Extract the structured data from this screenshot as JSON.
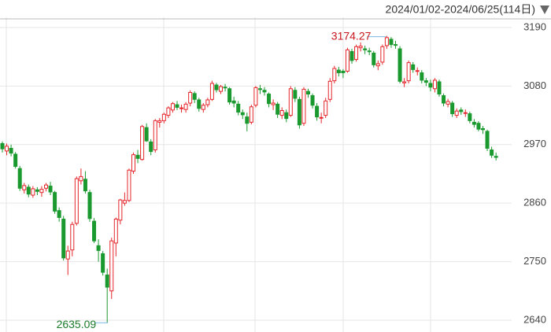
{
  "chart_data": {
    "type": "candlestick",
    "date_range": "2024/01/02-2024/06/25(114日)",
    "up_color": "#e5262b",
    "down_color": "#1a9a2e",
    "ylim": [
      2617.8,
      3209.2
    ],
    "yticks": [
      2640,
      2750,
      2860,
      2970,
      3080,
      3190
    ],
    "grid": true,
    "open": [
      2972,
      2958,
      2963,
      2952,
      2925,
      2885,
      2890,
      2875,
      2885,
      2880,
      2888,
      2892,
      2880,
      2846,
      2830,
      2755,
      2772,
      2822,
      2902,
      2905,
      2880,
      2826,
      2780,
      2765,
      2725,
      2695,
      2785,
      2828,
      2860,
      2865,
      2920,
      2950,
      2942,
      3002,
      2975,
      2960,
      3012,
      3015,
      3025,
      3035,
      3045,
      3038,
      3036,
      3048,
      3066,
      3054,
      3036,
      3045,
      3055,
      3082,
      3070,
      3078,
      3075,
      3052,
      3046,
      3030,
      3022,
      3012,
      3044,
      3075,
      3072,
      3065,
      3045,
      3046,
      3025,
      3030,
      3025,
      3072,
      3055,
      3010,
      3070,
      3062,
      3042,
      3020,
      3025,
      3055,
      3090,
      3110,
      3108,
      3108,
      3145,
      3130,
      3152,
      3150,
      3146,
      3142,
      3118,
      3125,
      3156,
      3168,
      3158,
      3150,
      3086,
      3090,
      3120,
      3108,
      3105,
      3090,
      3085,
      3075,
      3088,
      3062,
      3046,
      3048,
      3025,
      3035,
      3030,
      3028,
      3012,
      3010,
      3000,
      2995,
      2960,
      2948
    ],
    "high": [
      2976,
      2972,
      2970,
      2956,
      2930,
      2898,
      2895,
      2892,
      2890,
      2892,
      2898,
      2900,
      2883,
      2852,
      2836,
      2780,
      2825,
      2910,
      2925,
      2920,
      2885,
      2832,
      2792,
      2770,
      2737,
      2795,
      2833,
      2868,
      2880,
      2925,
      2955,
      2960,
      3007,
      3010,
      2980,
      3018,
      3020,
      3030,
      3042,
      3050,
      3052,
      3045,
      3050,
      3072,
      3070,
      3058,
      3048,
      3058,
      3090,
      3086,
      3082,
      3084,
      3078,
      3060,
      3052,
      3036,
      3030,
      3045,
      3080,
      3082,
      3078,
      3068,
      3055,
      3050,
      3040,
      3036,
      3080,
      3078,
      3060,
      3078,
      3075,
      3066,
      3048,
      3030,
      3058,
      3095,
      3118,
      3116,
      3112,
      3152,
      3150,
      3158,
      3162,
      3156,
      3152,
      3146,
      3128,
      3158,
      3174.27,
      3172,
      3165,
      3155,
      3095,
      3128,
      3125,
      3115,
      3110,
      3095,
      3092,
      3095,
      3092,
      3066,
      3056,
      3052,
      3038,
      3040,
      3036,
      3032,
      3018,
      3014,
      3005,
      2998,
      2966,
      2955
    ],
    "low": [
      2955,
      2950,
      2948,
      2925,
      2883,
      2878,
      2871,
      2870,
      2875,
      2872,
      2882,
      2875,
      2840,
      2825,
      2752,
      2725,
      2760,
      2818,
      2895,
      2878,
      2825,
      2785,
      2750,
      2724,
      2635.09,
      2680,
      2760,
      2820,
      2855,
      2862,
      2915,
      2935,
      2940,
      2975,
      2950,
      2955,
      3002,
      3010,
      3020,
      3030,
      3035,
      3030,
      3030,
      3042,
      3048,
      3032,
      3030,
      3040,
      3052,
      3068,
      3065,
      3070,
      3045,
      3040,
      3025,
      3018,
      2995,
      3008,
      3040,
      3065,
      3062,
      3040,
      3035,
      3020,
      3018,
      3012,
      3022,
      3050,
      3000,
      3005,
      3058,
      3038,
      3015,
      3010,
      3020,
      3050,
      3085,
      3098,
      3095,
      3105,
      3122,
      3126,
      3145,
      3140,
      3138,
      3115,
      3110,
      3120,
      3150,
      3152,
      3150,
      3085,
      3078,
      3085,
      3105,
      3100,
      3085,
      3080,
      3070,
      3068,
      3060,
      3042,
      3040,
      3022,
      3020,
      3026,
      3022,
      3010,
      3002,
      2995,
      2990,
      2958,
      2945,
      2940
    ],
    "close": [
      2962,
      2967,
      2954,
      2929,
      2888,
      2893,
      2877,
      2887,
      2882,
      2886,
      2894,
      2881,
      2845,
      2833,
      2757,
      2770,
      2820,
      2906,
      2910,
      2883,
      2831,
      2789,
      2771,
      2730,
      2702,
      2789,
      2830,
      2866,
      2865,
      2922,
      2951,
      2944,
      3004,
      2977,
      2957,
      3015,
      3015,
      3027,
      3039,
      3047,
      3040,
      3039,
      3046,
      3068,
      3055,
      3038,
      3044,
      3054,
      3085,
      3073,
      3079,
      3077,
      3050,
      3048,
      3031,
      3026,
      3010,
      3041,
      3077,
      3074,
      3069,
      3047,
      3048,
      3027,
      3034,
      3019,
      3075,
      3057,
      3007,
      3074,
      3065,
      3044,
      3022,
      3021,
      3052,
      3089,
      3113,
      3105,
      3105,
      3148,
      3128,
      3154,
      3155,
      3148,
      3145,
      3120,
      3122,
      3154,
      3171,
      3158,
      3157,
      3089,
      3088,
      3124,
      3111,
      3109,
      3091,
      3087,
      3078,
      3091,
      3065,
      3048,
      3051,
      3028,
      3033,
      3032,
      3030,
      3015,
      3008,
      2999,
      2998,
      2963,
      2950,
      2946
    ]
  }
}
